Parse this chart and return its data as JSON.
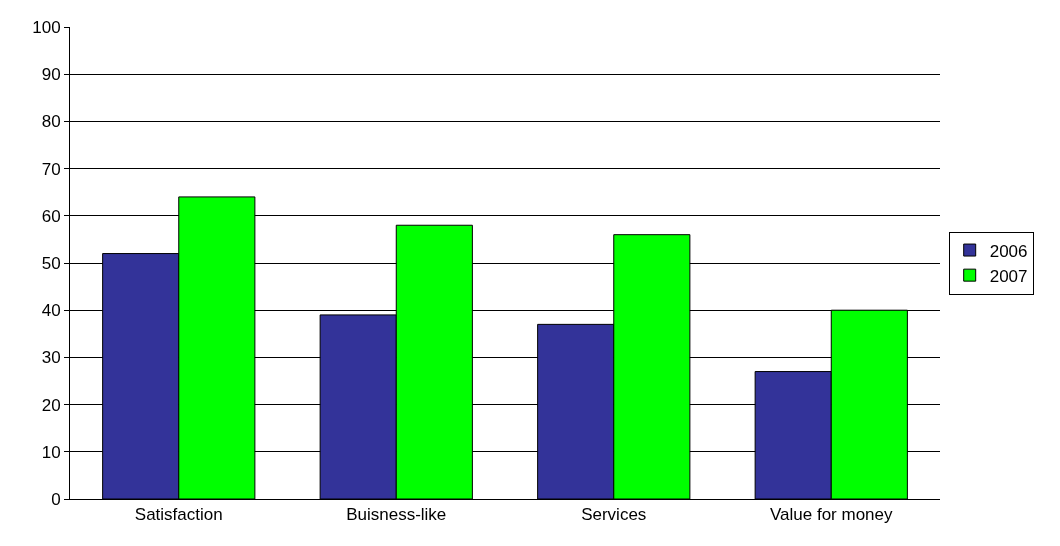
{
  "chart_data": {
    "type": "bar",
    "categories": [
      "Satisfaction",
      "Buisness-like",
      "Services",
      "Value for money"
    ],
    "series": [
      {
        "name": "2006",
        "color": "#333399",
        "values": [
          52,
          39,
          37,
          27
        ]
      },
      {
        "name": "2007",
        "color": "#00ff00",
        "values": [
          64,
          58,
          56,
          40
        ]
      }
    ],
    "ylim": [
      0,
      100
    ],
    "yticks": [
      0,
      10,
      20,
      30,
      40,
      50,
      60,
      70,
      80,
      90,
      100
    ],
    "grid": "y",
    "legend": "right"
  }
}
